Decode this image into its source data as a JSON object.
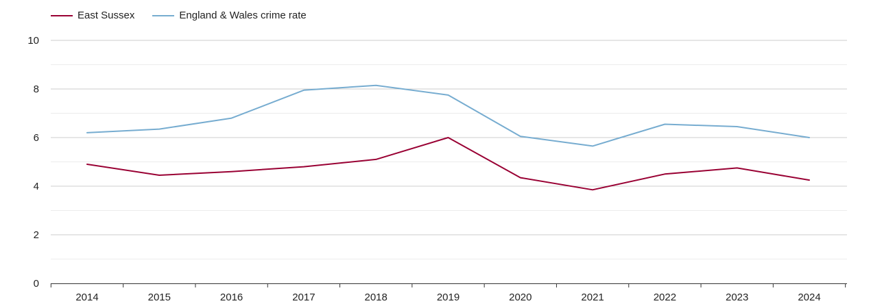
{
  "chart_data": {
    "type": "line",
    "title": "",
    "xlabel": "",
    "ylabel": "",
    "categories": [
      "2014",
      "2015",
      "2016",
      "2017",
      "2018",
      "2019",
      "2020",
      "2021",
      "2022",
      "2023",
      "2024"
    ],
    "ylim": [
      0,
      10
    ],
    "yticks": [
      0,
      2,
      4,
      6,
      8,
      10
    ],
    "grid": true,
    "legend_position": "top-left",
    "series": [
      {
        "name": "East Sussex",
        "color": "#990033",
        "values": [
          4.9,
          4.45,
          4.6,
          4.8,
          5.1,
          6.0,
          4.35,
          3.85,
          4.5,
          4.75,
          4.25
        ]
      },
      {
        "name": "England & Wales crime rate",
        "color": "#76acd0",
        "values": [
          6.2,
          6.35,
          6.8,
          7.95,
          8.15,
          7.75,
          6.05,
          5.65,
          6.55,
          6.45,
          6.0
        ]
      }
    ]
  }
}
